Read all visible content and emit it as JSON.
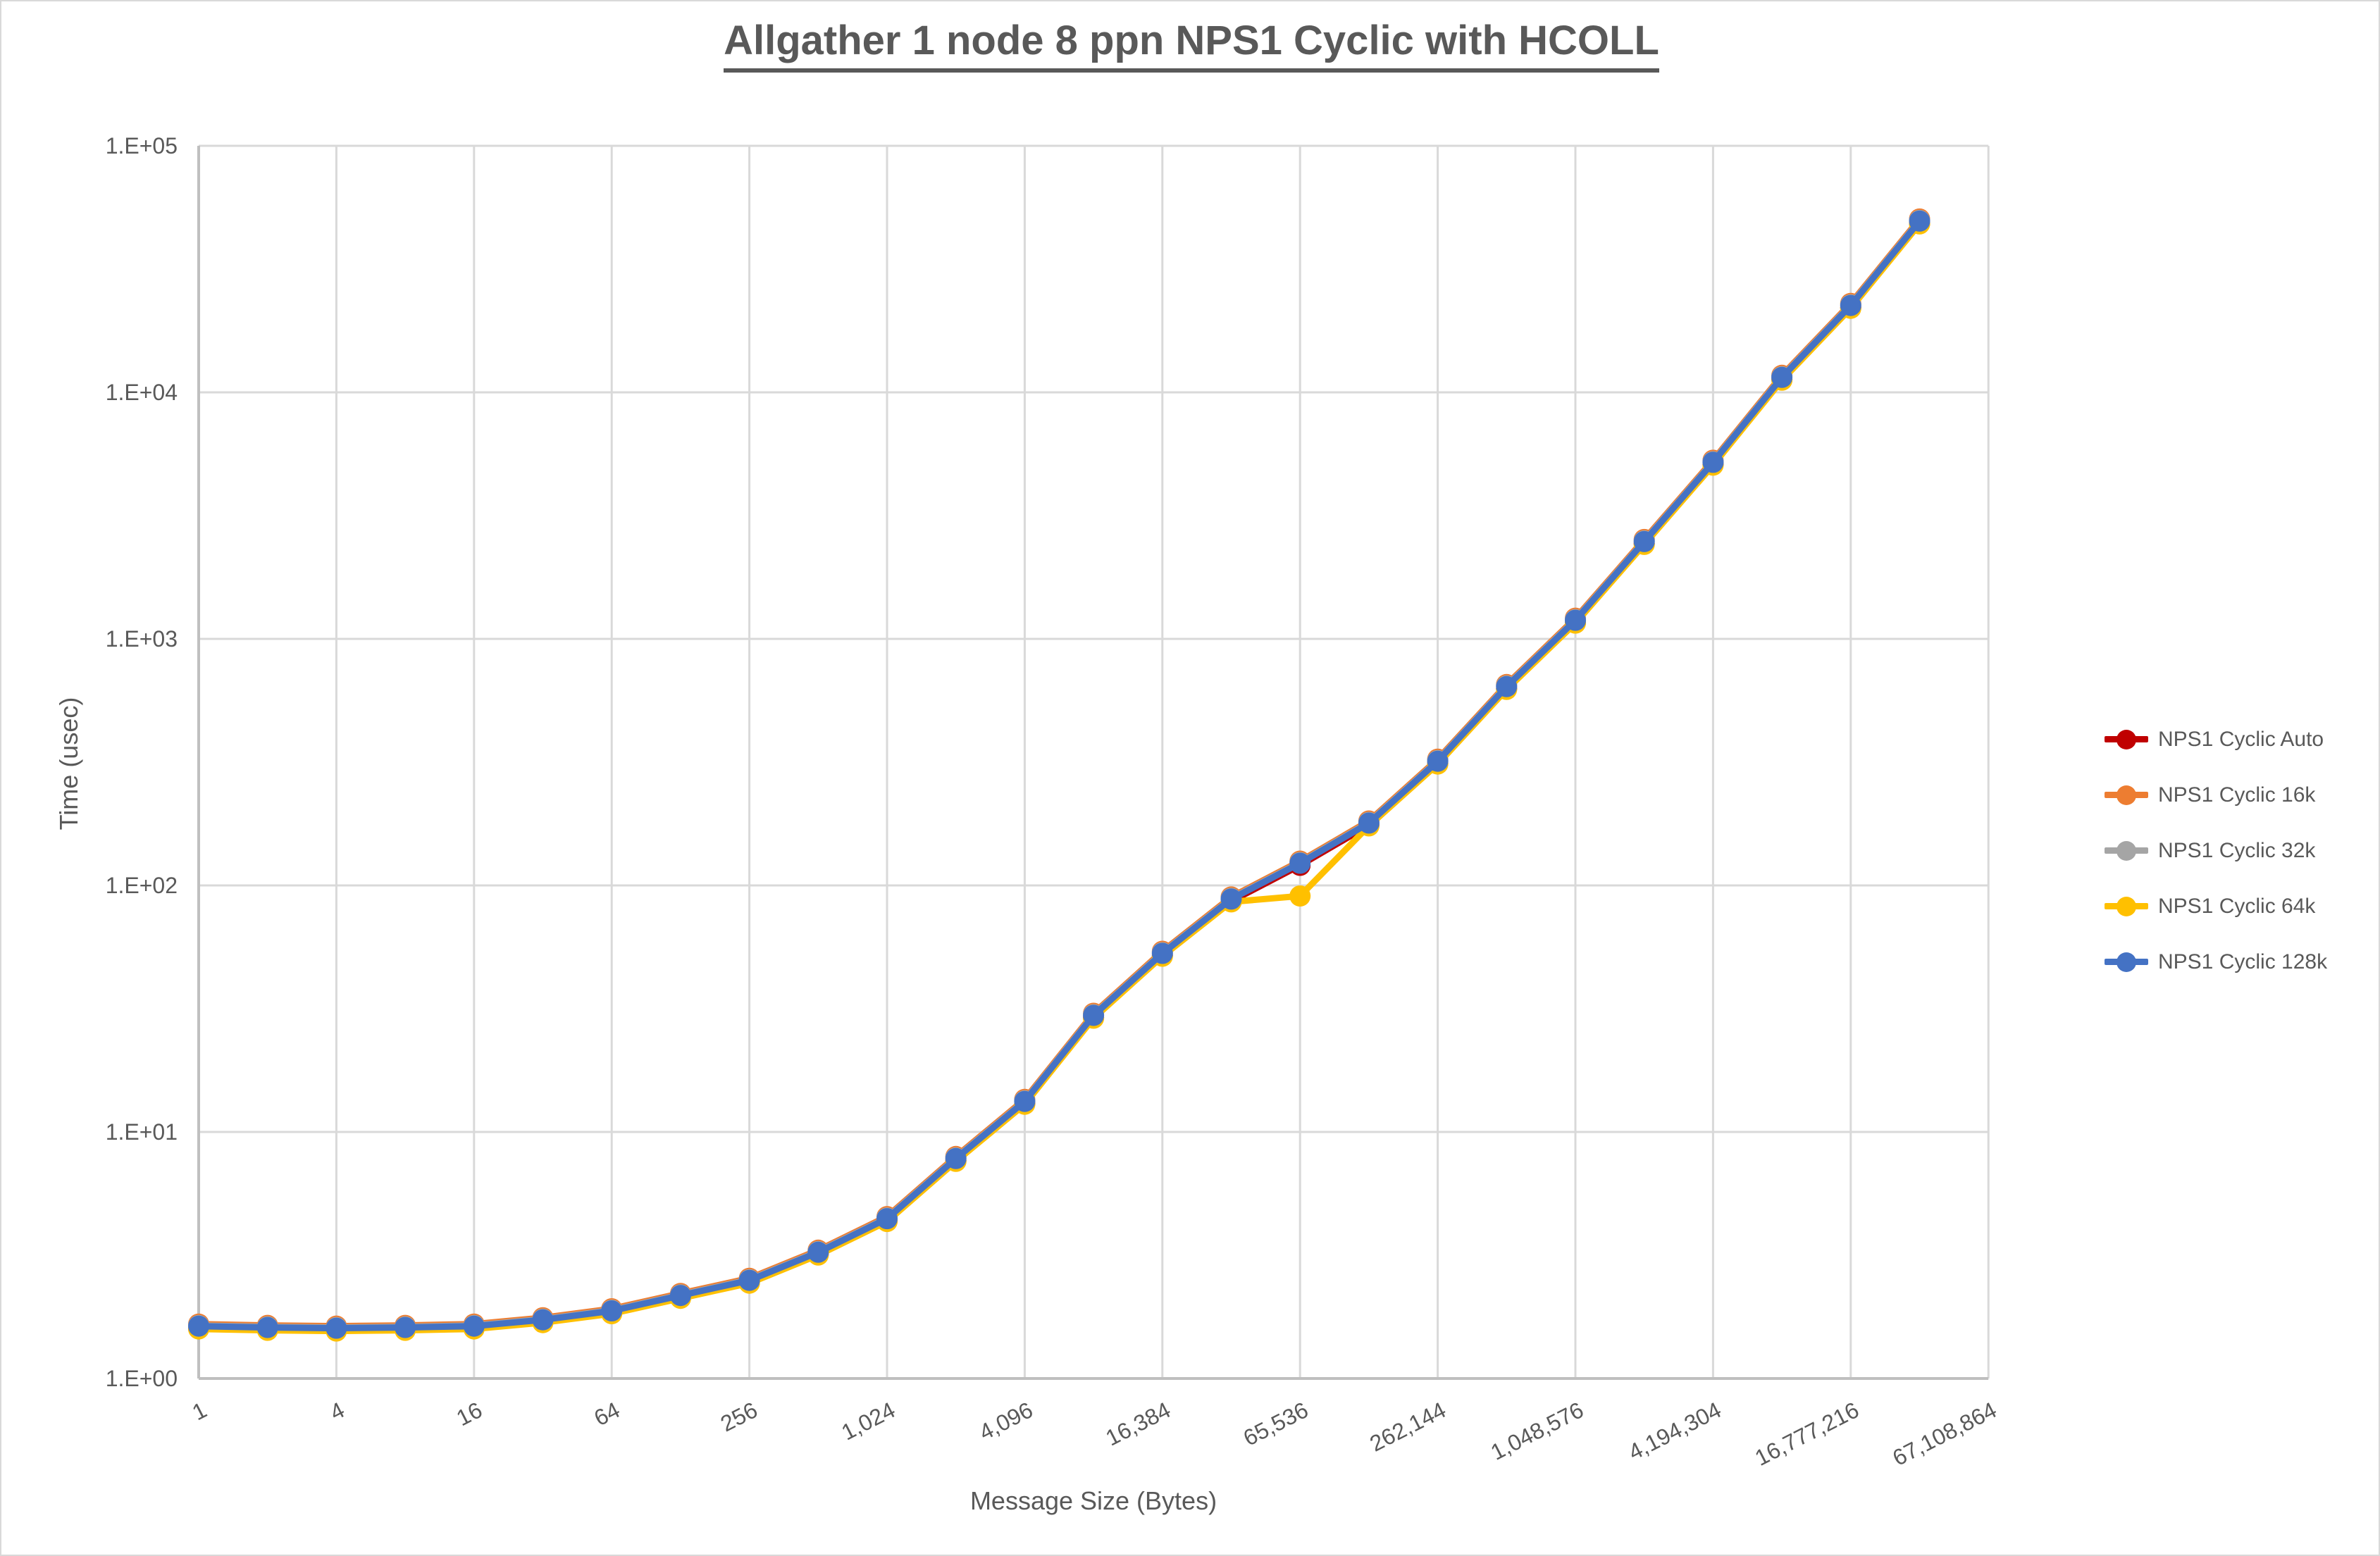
{
  "chart_data": {
    "type": "line",
    "title": "Allgather 1 node 8 ppn NPS1 Cyclic with HCOLL",
    "xlabel": "Message Size (Bytes)",
    "ylabel": "Time (usec)",
    "x_scale": "log2-categories",
    "y_scale": "log10",
    "ylim": [
      1,
      100000
    ],
    "y_tick_labels": [
      "1.E+00",
      "1.E+01",
      "1.E+02",
      "1.E+03",
      "1.E+04",
      "1.E+05"
    ],
    "x_categories": [
      1,
      2,
      4,
      8,
      16,
      32,
      64,
      128,
      256,
      512,
      1024,
      2048,
      4096,
      8192,
      16384,
      32768,
      65536,
      131072,
      262144,
      524288,
      1048576,
      2097152,
      4194304,
      8388608,
      16777216,
      33554432,
      67108864
    ],
    "x_tick_labels": [
      "1",
      "4",
      "16",
      "64",
      "256",
      "1,024",
      "4,096",
      "16,384",
      "65,536",
      "262,144",
      "1,048,576",
      "4,194,304",
      "16,777,216",
      "67,108,864"
    ],
    "grid": true,
    "legend_position": "right",
    "note": "All five series overlap almost exactly; only NPS1 Cyclic 64k deviates at message size 65,536 (dips to ~93 usec vs ~123 usec). No data plotted at 67,108,864.",
    "series": [
      {
        "name": "NPS1 Cyclic Auto",
        "color": "#C00000",
        "values": [
          1.63,
          1.61,
          1.6,
          1.61,
          1.63,
          1.73,
          1.88,
          2.17,
          2.5,
          3.25,
          4.45,
          7.8,
          13.3,
          29.7,
          53,
          88,
          123,
          179,
          319,
          640,
          1190,
          2480,
          5200,
          11500,
          22500,
          49500
        ]
      },
      {
        "name": "NPS1 Cyclic 16k",
        "color": "#ED7D31",
        "values": [
          1.63,
          1.61,
          1.6,
          1.61,
          1.63,
          1.73,
          1.88,
          2.17,
          2.5,
          3.25,
          4.45,
          7.8,
          13.3,
          29.7,
          53,
          88,
          123,
          179,
          319,
          640,
          1190,
          2480,
          5200,
          11500,
          22500,
          49500
        ]
      },
      {
        "name": "NPS1 Cyclic 32k",
        "color": "#A5A5A5",
        "values": [
          1.63,
          1.61,
          1.6,
          1.61,
          1.63,
          1.73,
          1.88,
          2.17,
          2.5,
          3.25,
          4.45,
          7.8,
          13.3,
          29.7,
          53,
          88,
          123,
          179,
          319,
          640,
          1190,
          2480,
          5200,
          11500,
          22500,
          49500
        ]
      },
      {
        "name": "NPS1 Cyclic 64k",
        "color": "#FFC000",
        "values": [
          1.63,
          1.61,
          1.6,
          1.61,
          1.63,
          1.73,
          1.88,
          2.17,
          2.5,
          3.25,
          4.45,
          7.8,
          13.3,
          29.7,
          53,
          88,
          93,
          179,
          319,
          640,
          1190,
          2480,
          5200,
          11500,
          22500,
          49500
        ]
      },
      {
        "name": "NPS1 Cyclic 128k",
        "color": "#4472C4",
        "values": [
          1.63,
          1.61,
          1.6,
          1.61,
          1.63,
          1.73,
          1.88,
          2.17,
          2.5,
          3.25,
          4.45,
          7.8,
          13.3,
          29.7,
          53,
          88,
          123,
          179,
          319,
          640,
          1190,
          2480,
          5200,
          11500,
          22500,
          49500
        ]
      }
    ],
    "colors": {
      "grid": "#D9D9D9",
      "axis": "#BFBFBF",
      "text": "#595959",
      "background": "#FFFFFF"
    }
  }
}
